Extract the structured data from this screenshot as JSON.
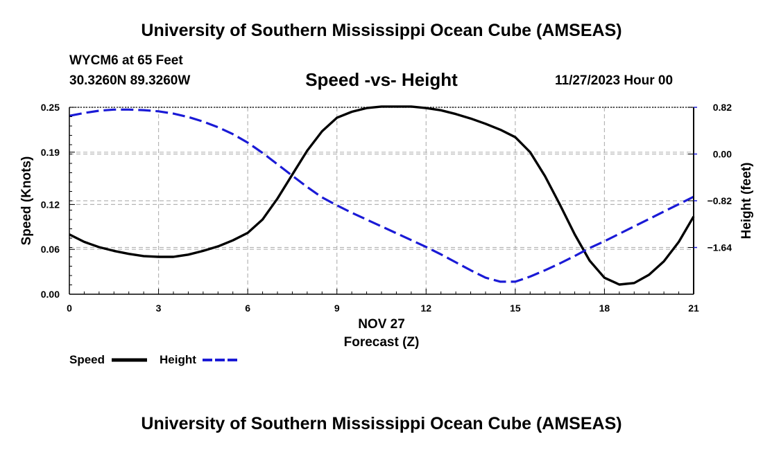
{
  "header": {
    "main_title": "University of Southern Mississippi Ocean Cube (AMSEAS)",
    "station": "WYCM6 at 65 Feet",
    "coordinates": "30.3260N  89.3260W",
    "chart_title": "Speed -vs- Height",
    "datetime": "11/27/2023 Hour 00"
  },
  "footer": {
    "title": "University of Southern Mississippi Ocean Cube (AMSEAS)"
  },
  "colors": {
    "speed": "#000000",
    "height": "#1a1ad6",
    "grid": "#b5b5b5"
  },
  "chart_data": {
    "type": "line",
    "title": "Speed -vs- Height",
    "xlabel_date": "NOV 27",
    "xlabel": "Forecast (Z)",
    "ylabel": "Speed (Knots)",
    "y2label": "Height (feet)",
    "xlim": [
      0,
      21
    ],
    "ylim": [
      0,
      0.25
    ],
    "y2lim": [
      -2.46,
      0.82
    ],
    "x_ticks": [
      0,
      3,
      6,
      9,
      12,
      15,
      18,
      21
    ],
    "x_tick_labels": [
      "0",
      "3",
      "6",
      "9",
      "12",
      "15",
      "18",
      "21"
    ],
    "y_ticks": [
      0,
      0.06,
      0.12,
      0.19,
      0.25
    ],
    "y_tick_labels": [
      "0.00",
      "0.06",
      "0.12",
      "0.19",
      "0.25"
    ],
    "y2_ticks": [
      0.82,
      0,
      -0.82,
      -1.64
    ],
    "y2_tick_labels": [
      "0.82",
      "0.00",
      "−0.82",
      "−1.64"
    ],
    "grid": true,
    "legend": [
      "Speed",
      "Height"
    ],
    "series": [
      {
        "name": "Speed",
        "axis": "left",
        "style": "solid",
        "x": [
          0,
          0.5,
          1,
          1.5,
          2,
          2.5,
          3,
          3.5,
          4,
          4.5,
          5,
          5.5,
          6,
          6.5,
          7,
          7.5,
          8,
          8.5,
          9,
          9.5,
          10,
          10.5,
          11,
          11.5,
          12,
          12.5,
          13,
          13.5,
          14,
          14.5,
          15,
          15.5,
          16,
          16.5,
          17,
          17.5,
          18,
          18.5,
          19,
          19.5,
          20,
          20.5,
          21
        ],
        "values": [
          0.08,
          0.07,
          0.063,
          0.058,
          0.054,
          0.051,
          0.05,
          0.05,
          0.053,
          0.058,
          0.064,
          0.072,
          0.082,
          0.1,
          0.128,
          0.16,
          0.192,
          0.218,
          0.236,
          0.244,
          0.249,
          0.251,
          0.251,
          0.251,
          0.249,
          0.246,
          0.241,
          0.235,
          0.228,
          0.22,
          0.21,
          0.19,
          0.158,
          0.12,
          0.08,
          0.045,
          0.022,
          0.013,
          0.015,
          0.026,
          0.044,
          0.07,
          0.104
        ]
      },
      {
        "name": "Height",
        "axis": "right",
        "style": "dashed",
        "x": [
          0,
          0.5,
          1,
          1.5,
          2,
          2.5,
          3,
          3.5,
          4,
          4.5,
          5,
          5.5,
          6,
          6.5,
          7,
          7.5,
          8,
          8.5,
          9,
          9.5,
          10,
          10.5,
          11,
          11.5,
          12,
          12.5,
          13,
          13.5,
          14,
          14.5,
          15,
          15.5,
          16,
          16.5,
          17,
          17.5,
          18,
          18.5,
          19,
          19.5,
          20,
          20.5,
          21
        ],
        "values": [
          0.67,
          0.72,
          0.76,
          0.78,
          0.78,
          0.77,
          0.75,
          0.71,
          0.65,
          0.57,
          0.47,
          0.35,
          0.2,
          0.02,
          -0.18,
          -0.38,
          -0.58,
          -0.76,
          -0.9,
          -1.03,
          -1.15,
          -1.27,
          -1.39,
          -1.51,
          -1.63,
          -1.76,
          -1.9,
          -2.04,
          -2.17,
          -2.24,
          -2.24,
          -2.15,
          -2.04,
          -1.92,
          -1.79,
          -1.65,
          -1.53,
          -1.4,
          -1.27,
          -1.14,
          -1.01,
          -0.88,
          -0.75
        ]
      }
    ]
  }
}
